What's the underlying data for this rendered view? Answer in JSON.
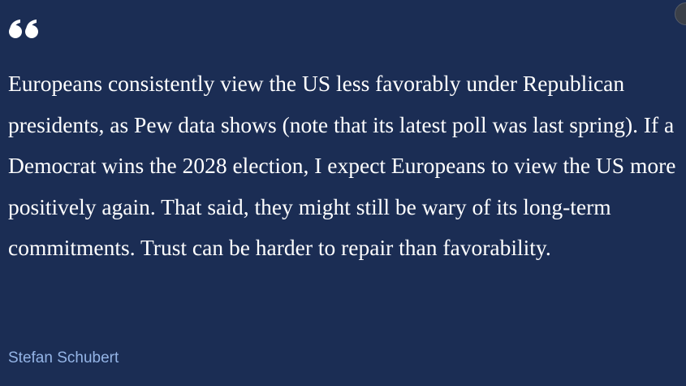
{
  "quote": {
    "text": "Europeans consistently view the US less favorably under Republican presidents, as Pew data shows (note that its latest poll was last spring). If a Democrat wins the 2028 election, I expect Europeans to view the US more positively again. That said, they might still be wary of its long-term commitments. Trust can be harder to repair than favorability.",
    "author": "Stefan Schubert"
  }
}
